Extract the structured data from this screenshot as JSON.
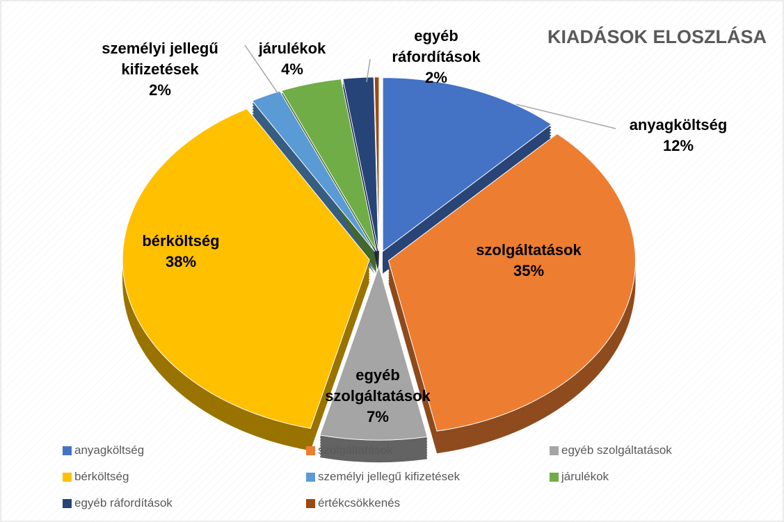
{
  "chart_data": {
    "type": "pie",
    "title": "KIADÁSOK ELOSZLÁSA",
    "categories": [
      "anyagköltség",
      "szolgáltatások",
      "egyéb szolgáltatások",
      "bérköltség",
      "személyi jellegű kifizetések",
      "járulékok",
      "egyéb ráfordítások",
      "értékcsökkenés"
    ],
    "values": [
      12,
      35,
      7,
      38,
      2,
      4,
      2,
      0.3
    ],
    "value_labels": [
      "12%",
      "35%",
      "7%",
      "38%",
      "2%",
      "4%",
      "2%",
      null
    ],
    "colors": [
      "#4472c4",
      "#ed7d31",
      "#a5a5a5",
      "#ffc000",
      "#5b9bd5",
      "#70ad47",
      "#264478",
      "#9e480e"
    ],
    "legend": "bottom"
  }
}
